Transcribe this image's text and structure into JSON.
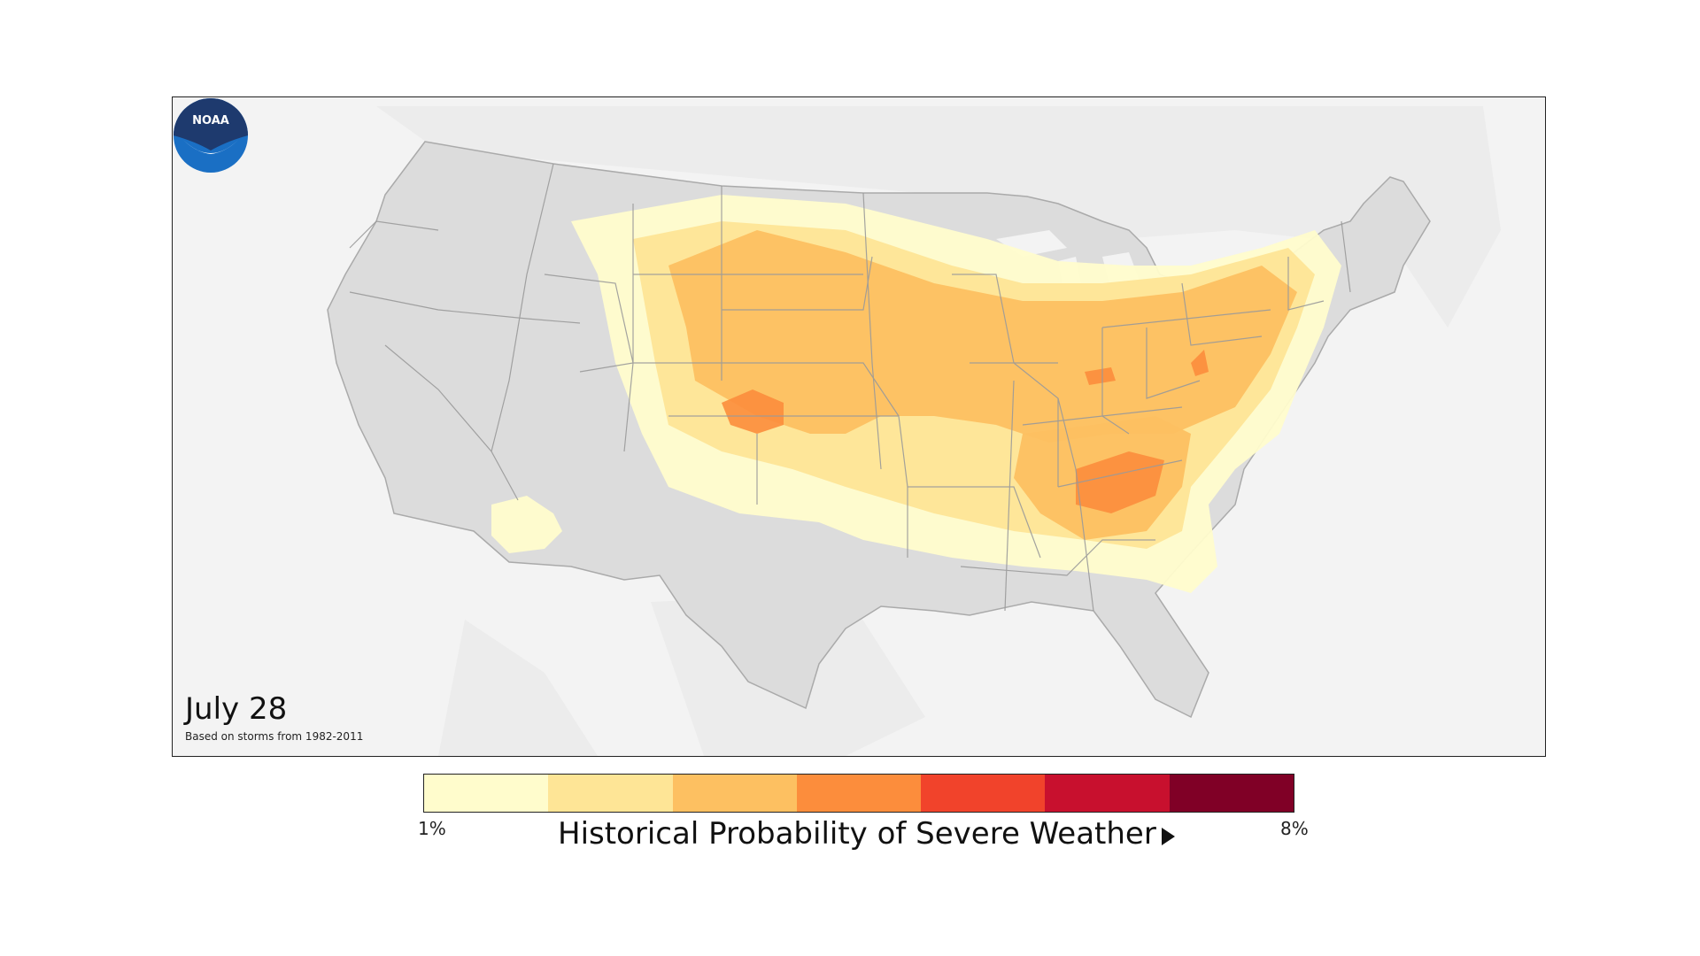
{
  "map": {
    "date": "July 28",
    "note": "Based on storms from 1982-2011",
    "logo_text": "NOAA",
    "background_color": "#f3f3f3",
    "land_color": "#dcdcdc",
    "border_color": "#9a9a9a"
  },
  "legend": {
    "title": "Historical Probability of Severe Weather",
    "min_label": "1%",
    "max_label": "8%",
    "colors": [
      "#fffccc",
      "#fee596",
      "#fdc061",
      "#fc8d3c",
      "#f1432b",
      "#c8102e",
      "#800026"
    ]
  },
  "icons": {
    "arrow": "play-right-icon",
    "logo": "noaa-logo-icon"
  }
}
